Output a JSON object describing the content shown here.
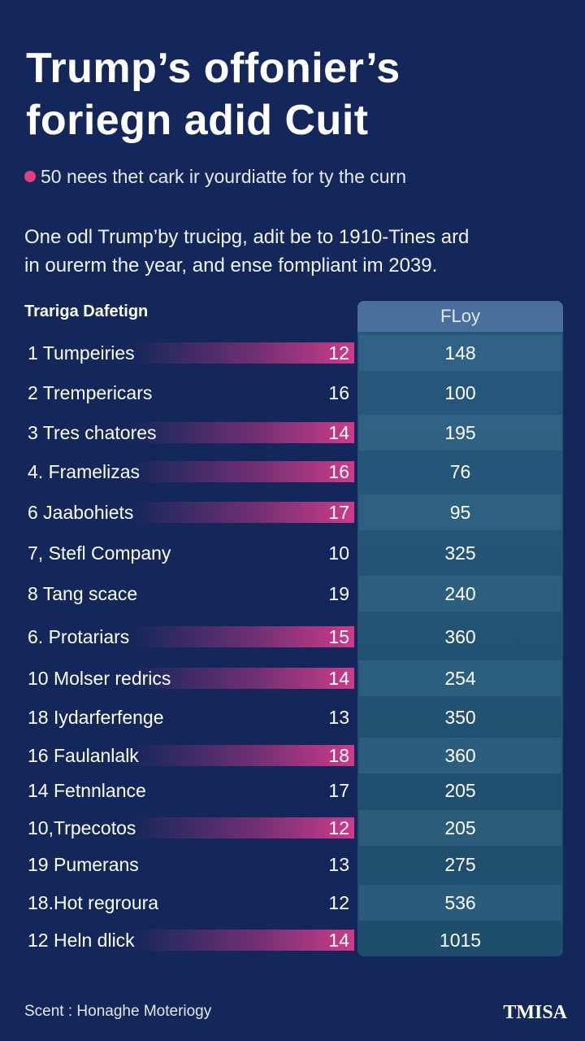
{
  "title_line1": "Trump’s offonier’s",
  "title_line2": "foriegn adid Cuit",
  "subtitle": "50 nees thet cark ir yourdiatte for ty the curn",
  "accent_color": "#e23e7e",
  "desc_line1": "One odl Trump’by trucipg, adit be to 1910-Tines ard",
  "desc_line2": "in ourerm the year, and ense fompliant im 2039.",
  "chart_data": {
    "type": "table",
    "columns": [
      "Trariga Dafetign",
      "",
      "FLoy"
    ],
    "rows": [
      {
        "label": "1  Tumpeiries",
        "value1": "12",
        "value2": "148",
        "bar": true
      },
      {
        "label": "2  Trempericars",
        "value1": "16",
        "value2": "100",
        "bar": false
      },
      {
        "label": "3  Tres chatores",
        "value1": "14",
        "value2": "195",
        "bar": true
      },
      {
        "label": "4. Framelizas",
        "value1": "16",
        "value2": "76",
        "bar": true
      },
      {
        "label": "6  Jaabohiets",
        "value1": "17",
        "value2": "95",
        "bar": true
      },
      {
        "label": "7, Stefl Company",
        "value1": "10",
        "value2": "325",
        "bar": false
      },
      {
        "label": "8  Tang scace",
        "value1": "19",
        "value2": "240",
        "bar": false
      },
      {
        "label": "6. Protariars",
        "value1": "15",
        "value2": "360",
        "bar": true
      },
      {
        "label": "10 Molser redrics",
        "value1": "14",
        "value2": "254",
        "bar": true
      },
      {
        "label": "18 Iydarferfenge",
        "value1": "13",
        "value2": "350",
        "bar": false
      },
      {
        "label": "16 Faulanlalk",
        "value1": "18",
        "value2": "360",
        "bar": true
      },
      {
        "label": "14 Fetnnlance",
        "value1": "17",
        "value2": "205",
        "bar": false
      },
      {
        "label": "10,Trpecotos",
        "value1": "12",
        "value2": "205",
        "bar": true
      },
      {
        "label": "19 Pumerans",
        "value1": "13",
        "value2": "275",
        "bar": false
      },
      {
        "label": "18.Hot regroura",
        "value1": "12",
        "value2": "536",
        "bar": false
      },
      {
        "label": "12 Heln dlick",
        "value1": "14",
        "value2": "1015",
        "bar": true
      }
    ]
  },
  "source": "Scent : Honaghe Moteriogy",
  "brand": "TMISA"
}
